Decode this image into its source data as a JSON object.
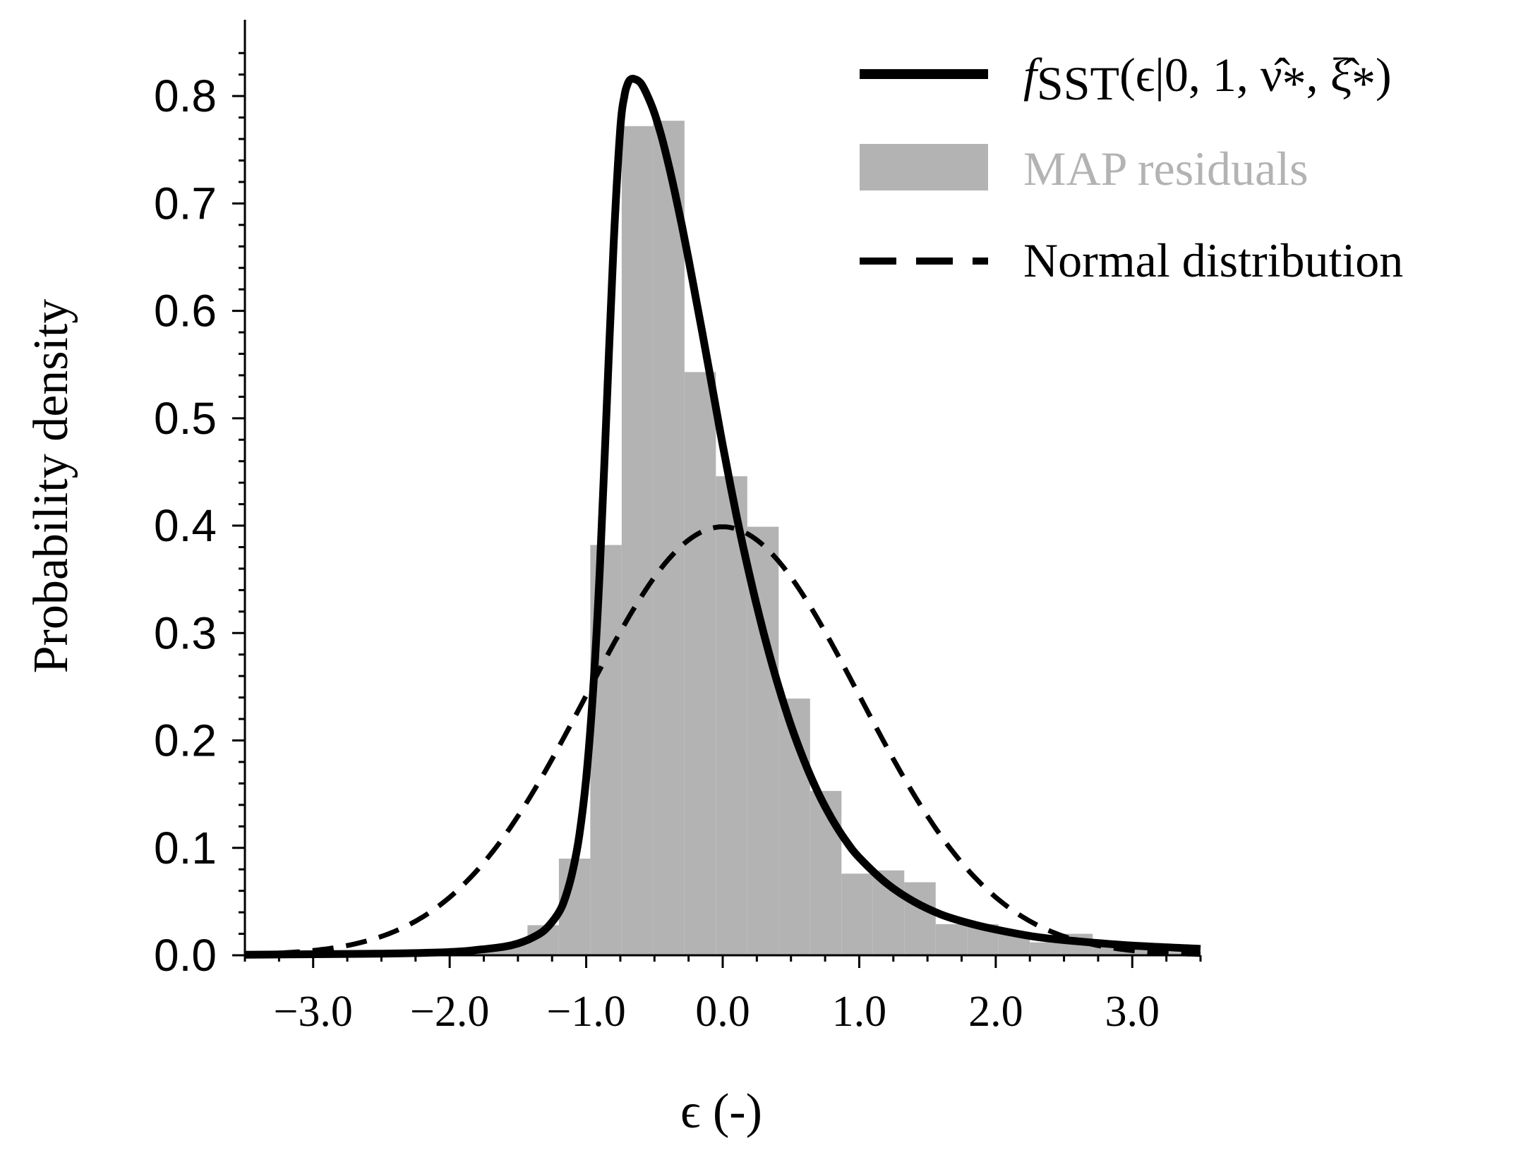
{
  "chart_data": {
    "type": "histogram+line",
    "xlabel": "ϵ (-)",
    "ylabel": "Probability density",
    "xlim": [
      -3.5,
      3.5
    ],
    "ylim": [
      0.0,
      0.85
    ],
    "x_ticks": [
      -3.0,
      -2.0,
      -1.0,
      0.0,
      1.0,
      2.0,
      3.0
    ],
    "x_tick_labels": [
      "−3.0",
      "−2.0",
      "−1.0",
      "0.0",
      "1.0",
      "2.0",
      "3.0"
    ],
    "y_ticks": [
      0.0,
      0.1,
      0.2,
      0.3,
      0.4,
      0.5,
      0.6,
      0.7,
      0.8
    ],
    "y_tick_labels": [
      "0.0",
      "0.1",
      "0.2",
      "0.3",
      "0.4",
      "0.5",
      "0.6",
      "0.7",
      "0.8"
    ],
    "legend": {
      "position": "top-right",
      "entries": [
        {
          "label_prefix": "f",
          "label_sub": "SST",
          "label_rest": "(ϵ|0, 1, ν̂",
          "label_sub2": "*",
          "label_mid": ", ξ̂",
          "label_sub3": "*",
          "label_end": ")",
          "style": "solid"
        },
        {
          "label": "MAP residuals",
          "style": "bar"
        },
        {
          "label": "Normal distribution",
          "style": "dashed"
        }
      ]
    },
    "histogram": {
      "name": "MAP residuals",
      "color": "#b3b3b3",
      "bin_edges": [
        -3.5,
        -3.27,
        -3.04,
        -2.81,
        -2.58,
        -2.35,
        -2.12,
        -1.89,
        -1.66,
        -1.43,
        -1.2,
        -0.97,
        -0.74,
        -0.51,
        -0.28,
        -0.05,
        0.18,
        0.41,
        0.64,
        0.87,
        1.1,
        1.33,
        1.56,
        1.79,
        2.02,
        2.25,
        2.48,
        2.71,
        2.94,
        3.17,
        3.4
      ],
      "values": [
        0.0,
        0.0,
        0.0,
        0.0,
        0.002,
        0.0,
        0.003,
        0.005,
        0.01,
        0.028,
        0.09,
        0.382,
        0.772,
        0.777,
        0.543,
        0.446,
        0.399,
        0.239,
        0.153,
        0.076,
        0.079,
        0.068,
        0.029,
        0.029,
        0.021,
        0.012,
        0.02,
        0.01,
        0.008,
        0.003
      ]
    },
    "series": [
      {
        "name": "fSST",
        "style": "solid",
        "color": "#000000",
        "x": [
          -3.5,
          -3.0,
          -2.5,
          -2.0,
          -1.8,
          -1.6,
          -1.5,
          -1.4,
          -1.3,
          -1.2,
          -1.15,
          -1.1,
          -1.05,
          -1.0,
          -0.95,
          -0.9,
          -0.85,
          -0.8,
          -0.75,
          -0.72,
          -0.7,
          -0.68,
          -0.65,
          -0.6,
          -0.55,
          -0.5,
          -0.45,
          -0.4,
          -0.35,
          -0.3,
          -0.25,
          -0.2,
          -0.15,
          -0.1,
          -0.05,
          0.0,
          0.1,
          0.2,
          0.3,
          0.4,
          0.5,
          0.6,
          0.7,
          0.8,
          0.9,
          1.0,
          1.2,
          1.4,
          1.6,
          1.8,
          2.0,
          2.3,
          2.6,
          3.0,
          3.5
        ],
        "y": [
          0.0005,
          0.001,
          0.0015,
          0.003,
          0.005,
          0.008,
          0.011,
          0.016,
          0.024,
          0.04,
          0.055,
          0.078,
          0.112,
          0.165,
          0.245,
          0.36,
          0.51,
          0.66,
          0.77,
          0.8,
          0.81,
          0.815,
          0.816,
          0.812,
          0.8,
          0.784,
          0.763,
          0.738,
          0.71,
          0.68,
          0.648,
          0.614,
          0.58,
          0.545,
          0.51,
          0.475,
          0.41,
          0.352,
          0.3,
          0.254,
          0.214,
          0.18,
          0.151,
          0.127,
          0.107,
          0.091,
          0.067,
          0.05,
          0.038,
          0.03,
          0.024,
          0.017,
          0.013,
          0.009,
          0.006
        ]
      },
      {
        "name": "Normal distribution",
        "style": "dashed",
        "color": "#000000",
        "mean": 0.0,
        "std": 1.0
      }
    ]
  }
}
